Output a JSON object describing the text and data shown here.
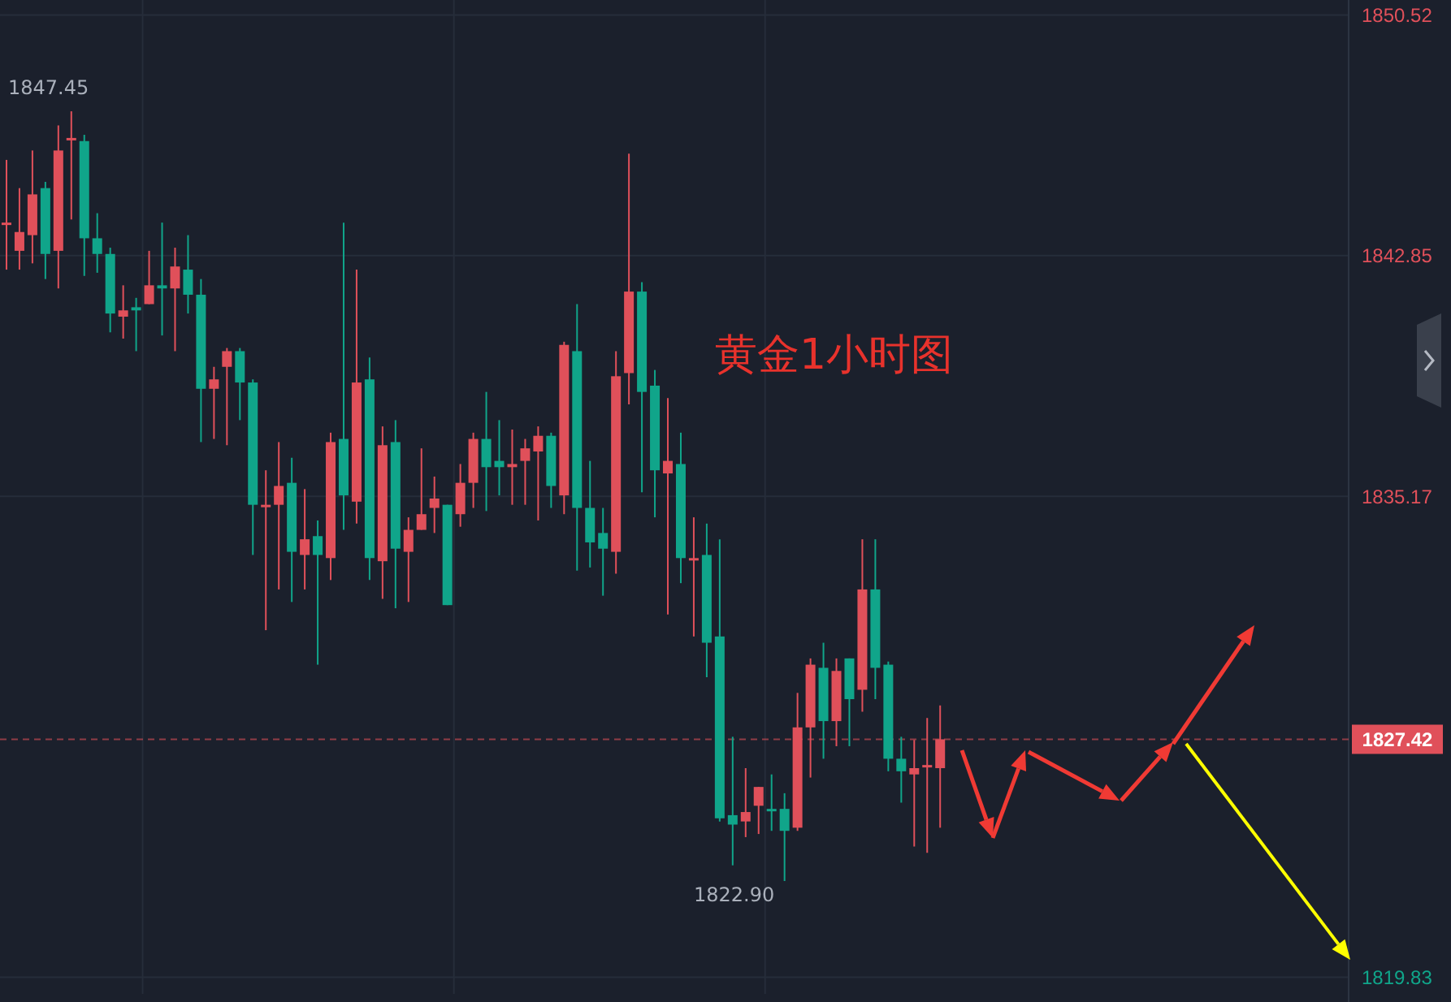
{
  "chart_data": {
    "type": "candlestick",
    "annotations": [
      "黄金1小时图",
      "1847.45",
      "1822.90"
    ],
    "categories": [
      null,
      null,
      null,
      null,
      null,
      null,
      null,
      null,
      null,
      null,
      null,
      null,
      null,
      null,
      null,
      null,
      null,
      null,
      null,
      null,
      null,
      null,
      null,
      null,
      null,
      null,
      null,
      null,
      null,
      null,
      null,
      null,
      null,
      null,
      null,
      null,
      null,
      null,
      null,
      null,
      null,
      null,
      null,
      null,
      null,
      null,
      null,
      null,
      null,
      null,
      null,
      null,
      null,
      null,
      null,
      null,
      null,
      null,
      null,
      null,
      null,
      null,
      null,
      null,
      null,
      null,
      null,
      null,
      null,
      null,
      null,
      null,
      null,
      null,
      null,
      null,
      null,
      null,
      null,
      null,
      null,
      null,
      null,
      null,
      null,
      null,
      null,
      null,
      null,
      null,
      null,
      null,
      null,
      null,
      null,
      null,
      null,
      null,
      null,
      null,
      null,
      null,
      null,
      null
    ],
    "ohlc": [
      [
        1843.9,
        1845.9,
        1842.4,
        1843.9
      ],
      [
        1843.0,
        1845.0,
        1842.4,
        1843.6
      ],
      [
        1843.5,
        1846.2,
        1842.6,
        1844.8
      ],
      [
        1845.0,
        1845.2,
        1842.1,
        1842.9
      ],
      [
        1843.0,
        1847.0,
        1841.8,
        1846.2
      ],
      [
        1846.6,
        1847.45,
        1844.0,
        1846.6
      ],
      [
        1846.5,
        1846.7,
        1842.2,
        1843.4
      ],
      [
        1843.4,
        1844.2,
        1842.3,
        1842.9
      ],
      [
        1842.9,
        1843.1,
        1840.4,
        1841.0
      ],
      [
        1840.9,
        1841.9,
        1840.2,
        1841.1
      ],
      [
        1841.2,
        1841.5,
        1839.8,
        1841.1
      ],
      [
        1841.3,
        1843.0,
        1841.3,
        1841.9
      ],
      [
        1841.9,
        1843.9,
        1840.3,
        1841.8
      ],
      [
        1841.8,
        1843.1,
        1839.8,
        1842.5
      ],
      [
        1842.4,
        1843.5,
        1841.0,
        1841.6
      ],
      [
        1841.6,
        1842.1,
        1836.9,
        1838.6
      ],
      [
        1838.6,
        1839.3,
        1837.0,
        1838.9
      ],
      [
        1839.3,
        1839.9,
        1836.8,
        1839.8
      ],
      [
        1839.8,
        1839.9,
        1837.6,
        1838.8
      ],
      [
        1838.8,
        1838.9,
        1833.3,
        1834.9
      ],
      [
        1834.9,
        1836.0,
        1830.9,
        1834.9
      ],
      [
        1834.9,
        1836.9,
        1832.2,
        1835.5
      ],
      [
        1835.6,
        1836.4,
        1831.8,
        1833.4
      ],
      [
        1833.3,
        1835.4,
        1832.2,
        1833.8
      ],
      [
        1833.9,
        1834.4,
        1829.8,
        1833.3
      ],
      [
        1833.2,
        1837.2,
        1832.5,
        1836.9
      ],
      [
        1837.0,
        1843.9,
        1834.1,
        1835.2
      ],
      [
        1835.0,
        1842.4,
        1834.3,
        1838.8
      ],
      [
        1838.9,
        1839.6,
        1832.5,
        1833.2
      ],
      [
        1833.1,
        1837.4,
        1831.9,
        1836.8
      ],
      [
        1836.9,
        1837.6,
        1831.6,
        1833.5
      ],
      [
        1833.4,
        1834.5,
        1831.8,
        1834.1
      ],
      [
        1834.1,
        1836.7,
        1834.1,
        1834.6
      ],
      [
        1834.8,
        1835.8,
        1834.0,
        1835.1
      ],
      [
        1834.9,
        1834.9,
        1831.7,
        1831.7
      ],
      [
        1834.6,
        1836.2,
        1834.2,
        1835.6
      ],
      [
        1835.6,
        1837.2,
        1834.8,
        1837.0
      ],
      [
        1837.0,
        1838.5,
        1834.7,
        1836.1
      ],
      [
        1836.3,
        1837.6,
        1835.2,
        1836.1
      ],
      [
        1836.1,
        1837.3,
        1834.9,
        1836.2
      ],
      [
        1836.3,
        1837.0,
        1834.9,
        1836.7
      ],
      [
        1836.6,
        1837.4,
        1834.4,
        1837.1
      ],
      [
        1837.1,
        1837.2,
        1834.8,
        1835.5
      ],
      [
        1835.2,
        1840.1,
        1834.6,
        1840.0
      ],
      [
        1839.8,
        1841.3,
        1832.8,
        1834.8
      ],
      [
        1834.8,
        1836.3,
        1832.9,
        1833.7
      ],
      [
        1834.0,
        1834.8,
        1832.0,
        1833.5
      ],
      [
        1833.4,
        1839.8,
        1832.7,
        1839.0
      ],
      [
        1839.1,
        1846.1,
        1838.1,
        1841.7
      ],
      [
        1841.7,
        1842.0,
        1835.3,
        1838.5
      ],
      [
        1838.7,
        1839.2,
        1834.5,
        1836.0
      ],
      [
        1835.9,
        1838.3,
        1831.4,
        1836.3
      ],
      [
        1836.2,
        1837.2,
        1832.4,
        1833.2
      ],
      [
        1833.2,
        1834.5,
        1830.7,
        1833.2
      ],
      [
        1833.3,
        1834.3,
        1829.4,
        1830.5
      ],
      [
        1830.7,
        1833.8,
        1824.8,
        1824.9
      ],
      [
        1825.0,
        1827.5,
        1823.4,
        1824.7
      ],
      [
        1824.8,
        1826.5,
        1824.3,
        1825.1
      ],
      [
        1825.3,
        1825.9,
        1824.4,
        1825.9
      ],
      [
        1825.2,
        1826.3,
        1824.5,
        1825.2
      ],
      [
        1825.2,
        1825.7,
        1822.9,
        1824.5
      ],
      [
        1824.6,
        1828.9,
        1824.5,
        1827.8
      ],
      [
        1827.8,
        1830.0,
        1826.2,
        1829.8
      ],
      [
        1829.7,
        1830.5,
        1826.8,
        1828.0
      ],
      [
        1828.0,
        1830.0,
        1827.2,
        1829.6
      ],
      [
        1830.0,
        1830.0,
        1827.2,
        1828.7
      ],
      [
        1829.0,
        1833.8,
        1828.3,
        1832.2
      ],
      [
        1832.2,
        1833.8,
        1828.7,
        1829.7
      ],
      [
        1829.8,
        1829.9,
        1826.4,
        1826.8
      ],
      [
        1826.8,
        1827.5,
        1825.4,
        1826.4
      ],
      [
        1826.3,
        1827.4,
        1824.0,
        1826.5
      ],
      [
        1826.6,
        1828.1,
        1823.8,
        1826.6
      ],
      [
        1826.5,
        1828.5,
        1824.6,
        1827.42
      ],
      null,
      null,
      null,
      null,
      null,
      null,
      null,
      null,
      null,
      null,
      null,
      null,
      null,
      null,
      null,
      null,
      null,
      null,
      null,
      null,
      null,
      null,
      null,
      null,
      null,
      null,
      null,
      null,
      null,
      null,
      null
    ],
    "colors": [
      "#e0505a",
      "#e0505a",
      "#e0505a",
      "#10a58a",
      "#e0505a",
      "#e0505a",
      "#10a58a",
      "#10a58a",
      "#10a58a",
      "#e0505a",
      "#10a58a",
      "#e0505a",
      "#10a58a",
      "#e0505a",
      "#10a58a",
      "#10a58a",
      "#e0505a",
      "#e0505a",
      "#10a58a",
      "#10a58a",
      "#e0505a",
      "#e0505a",
      "#10a58a",
      "#e0505a",
      "#10a58a",
      "#e0505a",
      "#10a58a",
      "#e0505a",
      "#10a58a",
      "#e0505a",
      "#10a58a",
      "#e0505a",
      "#e0505a",
      "#e0505a",
      "#10a58a",
      "#e0505a",
      "#e0505a",
      "#10a58a",
      "#10a58a",
      "#e0505a",
      "#e0505a",
      "#e0505a",
      "#10a58a",
      "#e0505a",
      "#10a58a",
      "#10a58a",
      "#10a58a",
      "#e0505a",
      "#e0505a",
      "#10a58a",
      "#10a58a",
      "#e0505a",
      "#10a58a",
      "#e0505a",
      "#10a58a",
      "#10a58a",
      "#10a58a",
      "#e0505a",
      "#e0505a",
      "#10a58a",
      "#10a58a",
      "#e0505a",
      "#e0505a",
      "#10a58a",
      "#e0505a",
      "#10a58a",
      "#e0505a",
      "#10a58a",
      "#10a58a",
      "#10a58a",
      "#e0505a",
      "#e0505a",
      "#e0505a",
      null,
      null,
      null,
      null,
      null,
      null,
      null,
      null,
      null,
      null,
      null,
      null,
      null,
      null,
      null,
      null,
      null,
      null,
      null,
      null,
      null,
      null,
      null,
      null,
      null,
      null,
      null,
      null,
      null,
      null,
      null
    ],
    "ylim": [
      1819.3,
      1851.0
    ],
    "yticks": [
      1850.52,
      1842.85,
      1835.17,
      1819.83
    ],
    "grid": true,
    "tick_labels": "y",
    "ref_lines": [
      {
        "axis": "y",
        "value": 1827.42,
        "label": "1827.42",
        "color": "#e0505a",
        "line_style": "dashed"
      }
    ]
  }
}
